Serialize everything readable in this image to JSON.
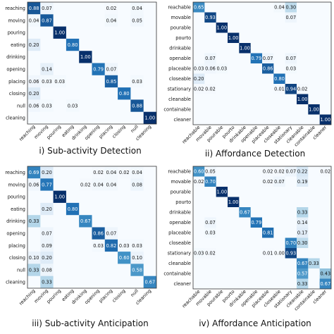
{
  "chart_data": [
    {
      "type": "heatmap",
      "title": "i) Sub-activity Detection",
      "labels": [
        "reaching",
        "moving",
        "pouring",
        "eating",
        "drinking",
        "opening",
        "placing",
        "closing",
        "null",
        "cleaning"
      ],
      "cells": [
        [
          0,
          0,
          "0.88"
        ],
        [
          0,
          1,
          "0.07"
        ],
        [
          0,
          6,
          "0.02"
        ],
        [
          0,
          8,
          "0.04"
        ],
        [
          1,
          0,
          "0.04"
        ],
        [
          1,
          1,
          "0.87"
        ],
        [
          1,
          6,
          "0.04"
        ],
        [
          1,
          8,
          "0.05"
        ],
        [
          2,
          2,
          "1.00"
        ],
        [
          3,
          0,
          "0.20"
        ],
        [
          3,
          3,
          "0.80"
        ],
        [
          4,
          4,
          "1.00"
        ],
        [
          5,
          1,
          "0.14"
        ],
        [
          5,
          5,
          "0.79"
        ],
        [
          5,
          6,
          "0.07"
        ],
        [
          6,
          0,
          "0.06"
        ],
        [
          6,
          1,
          "0.03"
        ],
        [
          6,
          2,
          "0.03"
        ],
        [
          6,
          6,
          "0.85"
        ],
        [
          6,
          8,
          "0.03"
        ],
        [
          7,
          0,
          "0.20"
        ],
        [
          7,
          7,
          "0.80"
        ],
        [
          8,
          0,
          "0.06"
        ],
        [
          8,
          1,
          "0.03"
        ],
        [
          8,
          3,
          "0.03"
        ],
        [
          8,
          8,
          "0.88"
        ],
        [
          9,
          9,
          "1.00"
        ]
      ]
    },
    {
      "type": "heatmap",
      "title": "ii) Affordance Detection",
      "labels": [
        "reachable",
        "movable",
        "pourable",
        "pourto",
        "drinkable",
        "openable",
        "placeable",
        "closeable",
        "stationary",
        "cleanable",
        "containable",
        "cleaner"
      ],
      "cells": [
        [
          0,
          0,
          "0.65"
        ],
        [
          0,
          7,
          "0.04"
        ],
        [
          0,
          8,
          "0.30"
        ],
        [
          1,
          1,
          "0.93"
        ],
        [
          1,
          8,
          "0.07"
        ],
        [
          2,
          2,
          "1.00"
        ],
        [
          3,
          3,
          "1.00"
        ],
        [
          4,
          4,
          "1.00"
        ],
        [
          5,
          1,
          "0.07"
        ],
        [
          5,
          5,
          "0.79"
        ],
        [
          5,
          6,
          "0.07"
        ],
        [
          5,
          8,
          "0.07"
        ],
        [
          6,
          0,
          "0.03"
        ],
        [
          6,
          1,
          "0.06"
        ],
        [
          6,
          2,
          "0.03"
        ],
        [
          6,
          6,
          "0.86"
        ],
        [
          6,
          8,
          "0.03"
        ],
        [
          7,
          0,
          "0.20"
        ],
        [
          7,
          7,
          "0.80"
        ],
        [
          8,
          0,
          "0.02"
        ],
        [
          8,
          1,
          "0.02"
        ],
        [
          8,
          7,
          "0.01"
        ],
        [
          8,
          8,
          "0.94"
        ],
        [
          8,
          9,
          "0.02"
        ],
        [
          9,
          9,
          "1.00"
        ],
        [
          10,
          10,
          "1.00"
        ],
        [
          11,
          11,
          "1.00"
        ]
      ]
    },
    {
      "type": "heatmap",
      "title": "iii) Sub-activity Anticipation",
      "labels": [
        "reaching",
        "moving",
        "pouring",
        "eating",
        "drinking",
        "opening",
        "placing",
        "closing",
        "null",
        "cleaning"
      ],
      "cells": [
        [
          0,
          0,
          "0.69"
        ],
        [
          0,
          1,
          "0.20"
        ],
        [
          0,
          5,
          "0.02"
        ],
        [
          0,
          6,
          "0.04"
        ],
        [
          0,
          7,
          "0.02"
        ],
        [
          0,
          8,
          "0.04"
        ],
        [
          1,
          0,
          "0.06"
        ],
        [
          1,
          1,
          "0.77"
        ],
        [
          1,
          4,
          "0.02"
        ],
        [
          1,
          5,
          "0.04"
        ],
        [
          1,
          6,
          "0.04"
        ],
        [
          1,
          8,
          "0.08"
        ],
        [
          2,
          2,
          "1.00"
        ],
        [
          3,
          1,
          "0.20"
        ],
        [
          3,
          3,
          "0.80"
        ],
        [
          4,
          0,
          "0.33"
        ],
        [
          4,
          4,
          "0.67"
        ],
        [
          5,
          1,
          "0.07"
        ],
        [
          5,
          5,
          "0.86"
        ],
        [
          5,
          6,
          "0.07"
        ],
        [
          6,
          1,
          "0.09"
        ],
        [
          6,
          5,
          "0.03"
        ],
        [
          6,
          6,
          "0.82"
        ],
        [
          6,
          7,
          "0.03"
        ],
        [
          6,
          8,
          "0.03"
        ],
        [
          7,
          0,
          "0.10"
        ],
        [
          7,
          1,
          "0.20"
        ],
        [
          7,
          7,
          "0.60"
        ],
        [
          7,
          8,
          "0.10"
        ],
        [
          8,
          0,
          "0.33"
        ],
        [
          8,
          1,
          "0.08"
        ],
        [
          8,
          8,
          "0.58"
        ],
        [
          9,
          1,
          "0.33"
        ],
        [
          9,
          9,
          "0.67"
        ]
      ]
    },
    {
      "type": "heatmap",
      "title": "iv) Affordance Anticipation",
      "labels": [
        "reachable",
        "movable",
        "pourable",
        "pourto",
        "drinkable",
        "openable",
        "placeable",
        "closeable",
        "stationary",
        "cleanable",
        "containable",
        "cleaner"
      ],
      "cells": [
        [
          0,
          0,
          "0.60"
        ],
        [
          0,
          1,
          "0.05"
        ],
        [
          0,
          6,
          "0.02"
        ],
        [
          0,
          7,
          "0.02"
        ],
        [
          0,
          8,
          "0.07"
        ],
        [
          0,
          9,
          "0.22"
        ],
        [
          0,
          11,
          "0.02"
        ],
        [
          1,
          0,
          "0.02"
        ],
        [
          1,
          1,
          "0.70"
        ],
        [
          1,
          6,
          "0.02"
        ],
        [
          1,
          7,
          "0.07"
        ],
        [
          1,
          9,
          "0.19"
        ],
        [
          2,
          2,
          "1.00"
        ],
        [
          3,
          3,
          "1.00"
        ],
        [
          4,
          4,
          "0.67"
        ],
        [
          4,
          9,
          "0.33"
        ],
        [
          5,
          1,
          "0.07"
        ],
        [
          5,
          5,
          "0.79"
        ],
        [
          5,
          9,
          "0.14"
        ],
        [
          6,
          1,
          "0.03"
        ],
        [
          6,
          6,
          "0.81"
        ],
        [
          6,
          9,
          "0.17"
        ],
        [
          7,
          8,
          "0.70"
        ],
        [
          7,
          9,
          "0.30"
        ],
        [
          8,
          0,
          "0.03"
        ],
        [
          8,
          1,
          "0.02"
        ],
        [
          8,
          6,
          "0.01"
        ],
        [
          8,
          7,
          "0.00"
        ],
        [
          8,
          8,
          "0.93"
        ],
        [
          9,
          9,
          "0.67"
        ],
        [
          9,
          10,
          "0.33"
        ],
        [
          10,
          9,
          "0.57"
        ],
        [
          10,
          11,
          "0.43"
        ],
        [
          11,
          9,
          "0.33"
        ],
        [
          11,
          11,
          "0.67"
        ]
      ]
    }
  ]
}
